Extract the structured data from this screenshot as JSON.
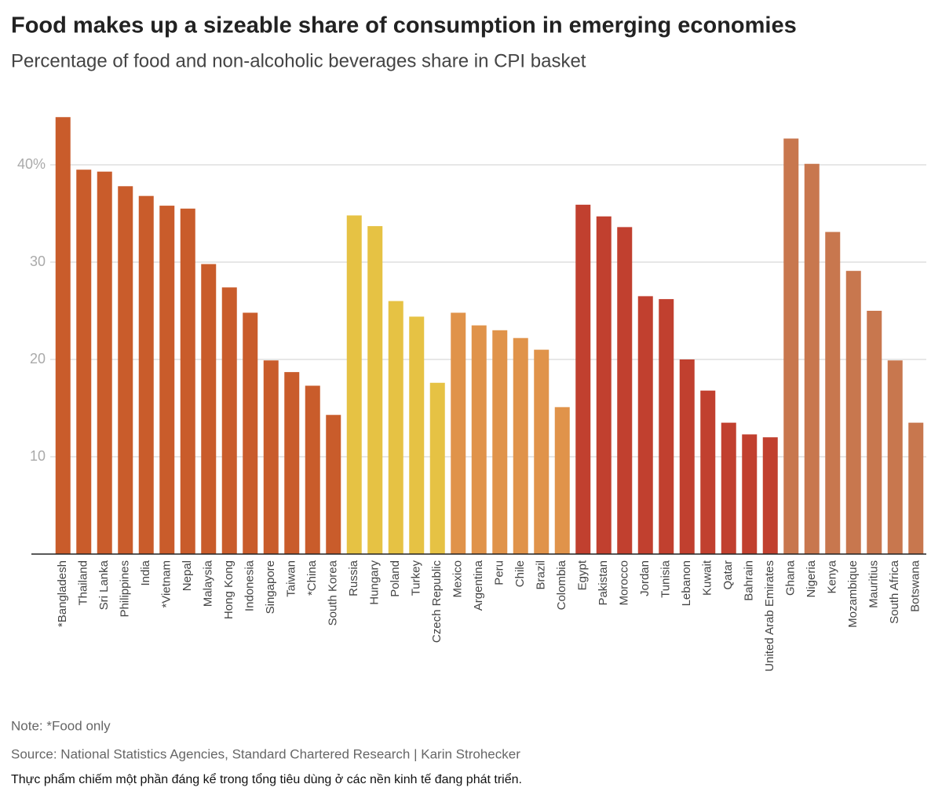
{
  "chart_data": {
    "type": "bar",
    "title": "Food makes up a sizeable share of consumption in emerging economies",
    "subtitle": "Percentage of food and non-alcoholic beverages share in CPI basket",
    "categories": [
      "*Bangladesh",
      "Thailand",
      "Sri Lanka",
      "Philippines",
      "India",
      "*Vietnam",
      "Nepal",
      "Malaysia",
      "Hong Kong",
      "Indonesia",
      "Singapore",
      "Taiwan",
      "*China",
      "South Korea",
      "Russia",
      "Hungary",
      "Poland",
      "Turkey",
      "Czech Republic",
      "Mexico",
      "Argentina",
      "Peru",
      "Chile",
      "Brazil",
      "Colombia",
      "Egypt",
      "Pakistan",
      "Morocco",
      "Jordan",
      "Tunisia",
      "Lebanon",
      "Kuwait",
      "Qatar",
      "Bahrain",
      "United Arab Emirates",
      "Ghana",
      "Nigeria",
      "Kenya",
      "Mozambique",
      "Mauritius",
      "South Africa",
      "Botswana"
    ],
    "values": [
      44.9,
      39.5,
      39.3,
      37.8,
      36.8,
      35.8,
      35.5,
      29.8,
      27.4,
      24.8,
      19.9,
      18.7,
      17.3,
      14.3,
      34.8,
      33.7,
      26.0,
      24.4,
      17.6,
      24.8,
      23.5,
      23.0,
      22.2,
      21.0,
      15.1,
      35.9,
      34.7,
      33.6,
      26.5,
      26.2,
      20.0,
      16.8,
      13.5,
      12.3,
      12.0,
      42.7,
      40.1,
      33.1,
      29.1,
      25.0,
      19.9,
      13.5
    ],
    "colors": [
      "#c95c2b",
      "#c95c2b",
      "#c95c2b",
      "#c95c2b",
      "#c95c2b",
      "#c95c2b",
      "#c95c2b",
      "#c95c2b",
      "#c95c2b",
      "#c95c2b",
      "#c95c2b",
      "#c95c2b",
      "#c95c2b",
      "#c95c2b",
      "#e6c244",
      "#e6c244",
      "#e6c244",
      "#e6c244",
      "#e6c244",
      "#e0934a",
      "#e0934a",
      "#e0934a",
      "#e0934a",
      "#e0934a",
      "#e0934a",
      "#c1402f",
      "#c1402f",
      "#c1402f",
      "#c1402f",
      "#c1402f",
      "#c1402f",
      "#c1402f",
      "#c1402f",
      "#c1402f",
      "#c1402f",
      "#c8774e",
      "#c8774e",
      "#c8774e",
      "#c8774e",
      "#c8774e",
      "#c8774e",
      "#c8774e"
    ],
    "ylim": [
      0,
      45
    ],
    "yticks": [
      10,
      20,
      30,
      {
        "value": 40,
        "label": "40%"
      }
    ],
    "grid": true,
    "note": "Note: *Food only",
    "source": "Source: National Statistics Agencies, Standard Chartered Research | Karin Strohecker",
    "caption": "Thực phẩm chiếm một phần đáng kể trong tổng tiêu dùng ở các nền kinh tế đang phát triển."
  }
}
